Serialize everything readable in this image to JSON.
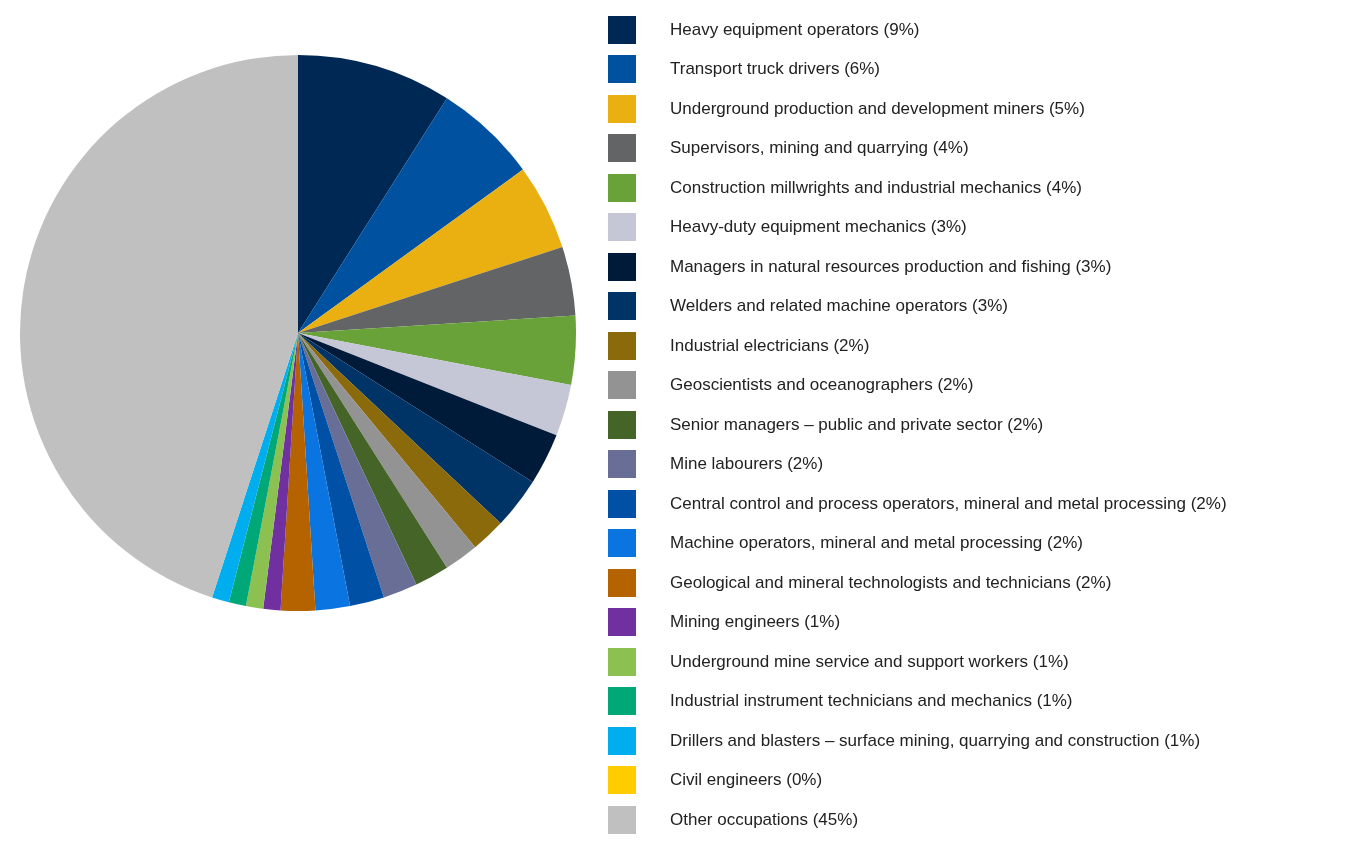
{
  "chart_data": {
    "type": "pie",
    "legend": "right",
    "categories": [
      "Heavy equipment operators (9%)",
      "Transport truck drivers (6%)",
      "Underground production and development miners (5%)",
      "Supervisors, mining and quarrying (4%)",
      "Construction millwrights and industrial mechanics (4%)",
      "Heavy-duty equipment mechanics (3%)",
      "Managers in natural resources production and fishing (3%)",
      "Welders and related machine operators (3%)",
      "Industrial electricians (2%)",
      "Geoscientists and oceanographers (2%)",
      "Senior managers – public and private sector (2%)",
      "Mine labourers (2%)",
      "Central control and process operators, mineral and metal processing (2%)",
      "Machine operators, mineral and metal processing (2%)",
      "Geological and mineral technologists and technicians (2%)",
      "Mining engineers (1%)",
      "Underground mine service and support workers (1%)",
      "Industrial instrument technicians and mechanics (1%)",
      "Drillers and blasters – surface mining, quarrying and construction (1%)",
      "Civil engineers (0%)",
      "Other occupations (45%)"
    ],
    "values": [
      9,
      6,
      5,
      4,
      4,
      3,
      3,
      3,
      2,
      2,
      2,
      2,
      2,
      2,
      2,
      1,
      1,
      1,
      1,
      0,
      45
    ],
    "colors": [
      "#002855",
      "#0052a0",
      "#eab012",
      "#636466",
      "#6aa23a",
      "#c5c7d6",
      "#001a3a",
      "#003366",
      "#8b6a0c",
      "#939393",
      "#456428",
      "#686e96",
      "#0050a5",
      "#0a74e0",
      "#b56200",
      "#7030a0",
      "#8cc152",
      "#00a878",
      "#00aeef",
      "#ffcc00",
      "#c0c0c0"
    ]
  }
}
